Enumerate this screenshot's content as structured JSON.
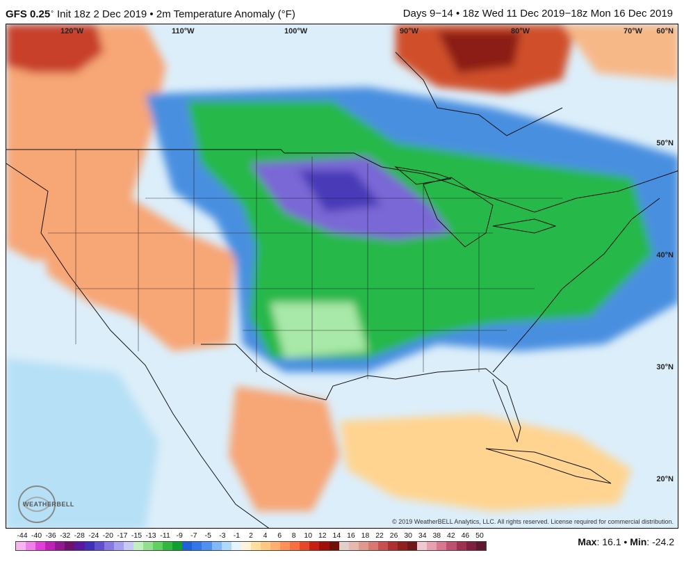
{
  "header": {
    "model": "GFS 0.25",
    "init": "Init 18z 2 Dec 2019 • 2m Temperature Anomaly (°F)",
    "right": "Days 9−14 • 18z Wed 11 Dec 2019−18z Mon 16 Dec 2019"
  },
  "map": {
    "lon_labels": [
      "120°W",
      "110°W",
      "100°W",
      "90°W",
      "80°W",
      "70°W"
    ],
    "lat_labels": [
      "60°N",
      "50°N",
      "40°N",
      "30°N",
      "20°N"
    ]
  },
  "logo": {
    "text": "WEATHERBELL"
  },
  "copyright": "© 2019 WeatherBELL Analytics, LLC. All rights reserved. License required for commercial distribution.",
  "colorbar": {
    "labels": [
      "-44",
      "-40",
      "-36",
      "-32",
      "-28",
      "-24",
      "-20",
      "-17",
      "-15",
      "-13",
      "-11",
      "-9",
      "-7",
      "-5",
      "-3",
      "-1",
      "2",
      "4",
      "6",
      "8",
      "10",
      "12",
      "14",
      "16",
      "18",
      "22",
      "26",
      "30",
      "34",
      "38",
      "42",
      "46",
      "50"
    ],
    "colors": [
      "#f8b4f0",
      "#f080e8",
      "#e040d8",
      "#c020b8",
      "#901890",
      "#701070",
      "#5818a0",
      "#4030b8",
      "#6050d0",
      "#8878e0",
      "#a8a0f0",
      "#c8c8f8",
      "#c0f0c0",
      "#90e090",
      "#60d060",
      "#30b840",
      "#10a030",
      "#2060d8",
      "#3078e8",
      "#5090f0",
      "#80b8f8",
      "#b0d8fa",
      "#e8f4fb",
      "#fff4d8",
      "#ffe0a0",
      "#ffc880",
      "#ffb070",
      "#ff9058",
      "#f87040",
      "#e84828",
      "#c82010",
      "#a01008",
      "#701008",
      "#e0d0c8",
      "#e8b8b0",
      "#e09890",
      "#d87870",
      "#c85050",
      "#b03030",
      "#902020",
      "#701818",
      "#f0c8d0",
      "#e8a0b0",
      "#d87890",
      "#c05070",
      "#a03050",
      "#802040",
      "#601830"
    ]
  },
  "stats": {
    "max_label": "Max",
    "max_value": "16.1",
    "min_label": "Min",
    "min_value": "-24.2"
  }
}
